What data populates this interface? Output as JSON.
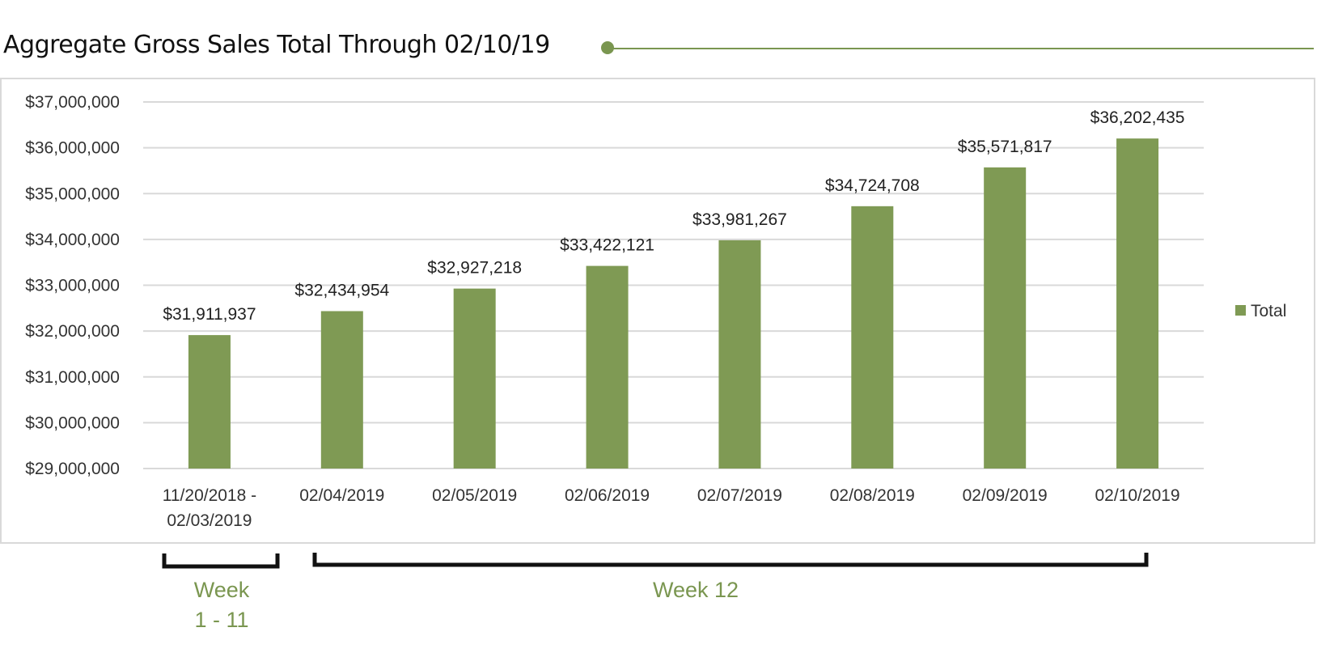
{
  "title": "Aggregate Gross Sales Total Through 02/10/19",
  "colors": {
    "accent": "#7f9a54",
    "gridline": "#d9d9d9",
    "frame": "#d9d9d9"
  },
  "legend": {
    "label": "Total"
  },
  "brackets": {
    "left_label_1": "Week",
    "left_label_2": "1 - 11",
    "right_label": "Week 12"
  },
  "chart_data": {
    "type": "bar",
    "categories": [
      [
        "11/20/2018 -",
        "02/03/2019"
      ],
      [
        "02/04/2019"
      ],
      [
        "02/05/2019"
      ],
      [
        "02/06/2019"
      ],
      [
        "02/07/2019"
      ],
      [
        "02/08/2019"
      ],
      [
        "02/09/2019"
      ],
      [
        "02/10/2019"
      ]
    ],
    "series": [
      {
        "name": "Total",
        "values": [
          31911937,
          32434954,
          32927218,
          33422121,
          33981267,
          34724708,
          35571817,
          36202435
        ]
      }
    ],
    "data_labels": [
      "$31,911,937",
      "$32,434,954",
      "$32,927,218",
      "$33,422,121",
      "$33,981,267",
      "$34,724,708",
      "$35,571,817",
      "$36,202,435"
    ],
    "ylim": [
      29000000,
      37000000
    ],
    "yticks": [
      29000000,
      30000000,
      31000000,
      32000000,
      33000000,
      34000000,
      35000000,
      36000000,
      37000000
    ],
    "ytick_labels": [
      "$29,000,000",
      "$30,000,000",
      "$31,000,000",
      "$32,000,000",
      "$33,000,000",
      "$34,000,000",
      "$35,000,000",
      "$36,000,000",
      "$37,000,000"
    ],
    "title": "Aggregate Gross Sales Total Through 02/10/19",
    "xlabel": "",
    "ylabel": "",
    "grid": true,
    "legend_position": "right"
  }
}
